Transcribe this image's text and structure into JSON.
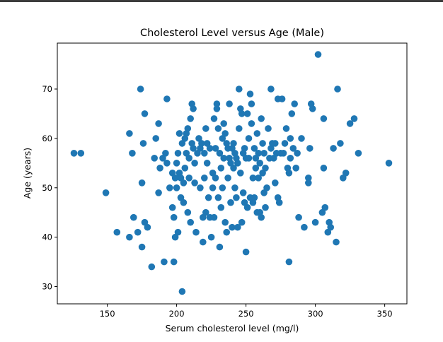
{
  "chart_data": {
    "type": "scatter",
    "title": "Cholesterol Level versus Age (Male)",
    "xlabel": "Serum cholesterol level (mg/l)",
    "ylabel": "Age (years)",
    "xlim": [
      114,
      366
    ],
    "ylim": [
      26.5,
      79.3
    ],
    "xticks": [
      150,
      200,
      250,
      300,
      350
    ],
    "yticks": [
      30,
      40,
      50,
      60,
      70
    ],
    "grid": false,
    "legend": "none",
    "marker_color": "#1f77b4",
    "points": [
      [
        126,
        57
      ],
      [
        131,
        57
      ],
      [
        149,
        49
      ],
      [
        157,
        41
      ],
      [
        166,
        61
      ],
      [
        166,
        40
      ],
      [
        168,
        57
      ],
      [
        169,
        44
      ],
      [
        172,
        41
      ],
      [
        174,
        70
      ],
      [
        175,
        38
      ],
      [
        175,
        51
      ],
      [
        176,
        59
      ],
      [
        177,
        65
      ],
      [
        177,
        43
      ],
      [
        179,
        42
      ],
      [
        182,
        34
      ],
      [
        184,
        56
      ],
      [
        185,
        60
      ],
      [
        187,
        63
      ],
      [
        187,
        49
      ],
      [
        188,
        54
      ],
      [
        190,
        56
      ],
      [
        191,
        35
      ],
      [
        192,
        57
      ],
      [
        193,
        68
      ],
      [
        193,
        55
      ],
      [
        195,
        50
      ],
      [
        197,
        53
      ],
      [
        197,
        46
      ],
      [
        198,
        44
      ],
      [
        198,
        35
      ],
      [
        199,
        52
      ],
      [
        199,
        40
      ],
      [
        200,
        55
      ],
      [
        200,
        50
      ],
      [
        201,
        41
      ],
      [
        201,
        57
      ],
      [
        202,
        61
      ],
      [
        202,
        53
      ],
      [
        203,
        48
      ],
      [
        203,
        52
      ],
      [
        204,
        29
      ],
      [
        204,
        59
      ],
      [
        205,
        51
      ],
      [
        205,
        47
      ],
      [
        206,
        54
      ],
      [
        206,
        60
      ],
      [
        207,
        57
      ],
      [
        207,
        61
      ],
      [
        208,
        62
      ],
      [
        208,
        45
      ],
      [
        209,
        56
      ],
      [
        209,
        52
      ],
      [
        210,
        64
      ],
      [
        210,
        43
      ],
      [
        211,
        67
      ],
      [
        211,
        59
      ],
      [
        212,
        66
      ],
      [
        212,
        58
      ],
      [
        213,
        51
      ],
      [
        213,
        55
      ],
      [
        214,
        41
      ],
      [
        215,
        57
      ],
      [
        216,
        60
      ],
      [
        217,
        58
      ],
      [
        217,
        50
      ],
      [
        218,
        59
      ],
      [
        219,
        44
      ],
      [
        219,
        39
      ],
      [
        220,
        57
      ],
      [
        220,
        52
      ],
      [
        221,
        62
      ],
      [
        221,
        45
      ],
      [
        222,
        59
      ],
      [
        222,
        55
      ],
      [
        223,
        48
      ],
      [
        224,
        58
      ],
      [
        224,
        44
      ],
      [
        225,
        40
      ],
      [
        226,
        53
      ],
      [
        226,
        50
      ],
      [
        227,
        64
      ],
      [
        227,
        44
      ],
      [
        228,
        58
      ],
      [
        228,
        52
      ],
      [
        229,
        66
      ],
      [
        229,
        67
      ],
      [
        230,
        48
      ],
      [
        230,
        62
      ],
      [
        231,
        57
      ],
      [
        231,
        38
      ],
      [
        232,
        54
      ],
      [
        232,
        46
      ],
      [
        233,
        60
      ],
      [
        233,
        50
      ],
      [
        234,
        63
      ],
      [
        234,
        56
      ],
      [
        235,
        61
      ],
      [
        235,
        43
      ],
      [
        236,
        59
      ],
      [
        236,
        41
      ],
      [
        237,
        58
      ],
      [
        237,
        52
      ],
      [
        238,
        56
      ],
      [
        238,
        67
      ],
      [
        239,
        55
      ],
      [
        239,
        47
      ],
      [
        240,
        58
      ],
      [
        240,
        42
      ],
      [
        241,
        59
      ],
      [
        241,
        54
      ],
      [
        242,
        57
      ],
      [
        242,
        50
      ],
      [
        243,
        48
      ],
      [
        243,
        56
      ],
      [
        244,
        55
      ],
      [
        244,
        42
      ],
      [
        245,
        70
      ],
      [
        245,
        62
      ],
      [
        246,
        66
      ],
      [
        246,
        53
      ],
      [
        247,
        65
      ],
      [
        247,
        43
      ],
      [
        248,
        57
      ],
      [
        248,
        49
      ],
      [
        249,
        58
      ],
      [
        249,
        47
      ],
      [
        250,
        56
      ],
      [
        250,
        37
      ],
      [
        251,
        46
      ],
      [
        251,
        65
      ],
      [
        252,
        60
      ],
      [
        252,
        56
      ],
      [
        253,
        69
      ],
      [
        253,
        48
      ],
      [
        254,
        67
      ],
      [
        254,
        63
      ],
      [
        255,
        47
      ],
      [
        255,
        52
      ],
      [
        256,
        48
      ],
      [
        256,
        58
      ],
      [
        257,
        56
      ],
      [
        257,
        54
      ],
      [
        258,
        45
      ],
      [
        258,
        61
      ],
      [
        259,
        52
      ],
      [
        259,
        57
      ],
      [
        260,
        55
      ],
      [
        260,
        45
      ],
      [
        261,
        64
      ],
      [
        261,
        44
      ],
      [
        262,
        59
      ],
      [
        262,
        53
      ],
      [
        263,
        57
      ],
      [
        263,
        49
      ],
      [
        264,
        54
      ],
      [
        264,
        46
      ],
      [
        265,
        50
      ],
      [
        266,
        62
      ],
      [
        267,
        56
      ],
      [
        268,
        70
      ],
      [
        268,
        58
      ],
      [
        269,
        59
      ],
      [
        270,
        56
      ],
      [
        271,
        59
      ],
      [
        271,
        51
      ],
      [
        272,
        57
      ],
      [
        273,
        68
      ],
      [
        273,
        48
      ],
      [
        274,
        47
      ],
      [
        275,
        57
      ],
      [
        276,
        68
      ],
      [
        277,
        57
      ],
      [
        278,
        59
      ],
      [
        279,
        62
      ],
      [
        280,
        54
      ],
      [
        281,
        35
      ],
      [
        281,
        53
      ],
      [
        282,
        60
      ],
      [
        282,
        56
      ],
      [
        283,
        65
      ],
      [
        284,
        58
      ],
      [
        285,
        67
      ],
      [
        286,
        54
      ],
      [
        287,
        57
      ],
      [
        288,
        44
      ],
      [
        290,
        60
      ],
      [
        292,
        42
      ],
      [
        295,
        51
      ],
      [
        295,
        52
      ],
      [
        296,
        58
      ],
      [
        297,
        67
      ],
      [
        298,
        66
      ],
      [
        300,
        43
      ],
      [
        302,
        77
      ],
      [
        305,
        45
      ],
      [
        306,
        64
      ],
      [
        306,
        54
      ],
      [
        307,
        46
      ],
      [
        309,
        41
      ],
      [
        310,
        43
      ],
      [
        311,
        42
      ],
      [
        313,
        58
      ],
      [
        315,
        39
      ],
      [
        316,
        70
      ],
      [
        318,
        59
      ],
      [
        320,
        52
      ],
      [
        322,
        53
      ],
      [
        325,
        63
      ],
      [
        328,
        64
      ],
      [
        331,
        57
      ],
      [
        353,
        55
      ]
    ]
  }
}
